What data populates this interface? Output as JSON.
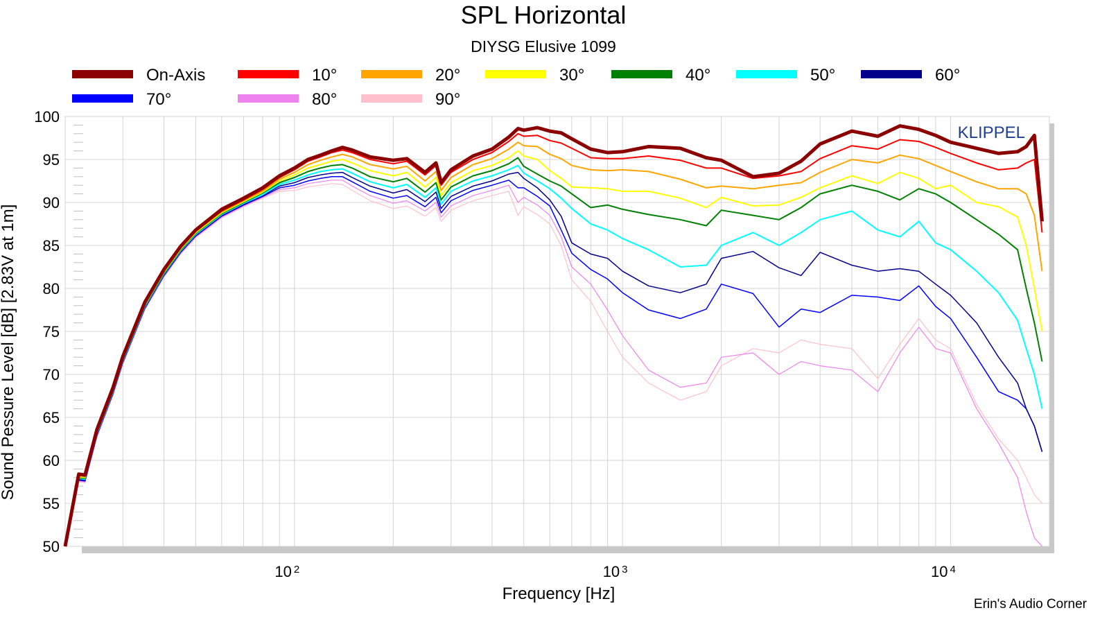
{
  "chart_data": {
    "type": "line",
    "title": "SPL Horizontal",
    "subtitle": "DIYSG Elusive 1099",
    "xlabel": "Frequency [Hz]",
    "ylabel": "Sound Pessure Level [dB]   [2.83V at 1m]",
    "x_scale": "log",
    "xlim": [
      20,
      20000
    ],
    "ylim": [
      50,
      100
    ],
    "grid": true,
    "legend_placement": "top",
    "watermark": "KLIPPEL",
    "credit": "Erin's Audio Corner",
    "x_ticks": [
      {
        "base": "10",
        "exp": "2",
        "value": 100
      },
      {
        "base": "10",
        "exp": "3",
        "value": 1000
      },
      {
        "base": "10",
        "exp": "4",
        "value": 10000
      }
    ],
    "y_ticks": [
      "100",
      "95",
      "90",
      "85",
      "80",
      "75",
      "70",
      "65",
      "60",
      "55",
      "50"
    ],
    "x": [
      20,
      22,
      23,
      25,
      28,
      30,
      35,
      40,
      45,
      50,
      60,
      70,
      80,
      90,
      100,
      110,
      120,
      130,
      140,
      150,
      170,
      200,
      220,
      250,
      270,
      280,
      300,
      350,
      400,
      450,
      480,
      500,
      550,
      600,
      650,
      700,
      800,
      900,
      1000,
      1200,
      1500,
      1800,
      2000,
      2500,
      3000,
      3500,
      4000,
      5000,
      6000,
      7000,
      8000,
      9000,
      10000,
      12000,
      14000,
      16000,
      17000,
      18000,
      19000
    ],
    "series": [
      {
        "name": "On-Axis",
        "color": "#8b0000",
        "width": 5,
        "values": [
          50.0,
          58.4,
          58.3,
          63.6,
          68.5,
          72.1,
          78.4,
          82.2,
          84.9,
          86.8,
          89.2,
          90.5,
          91.7,
          93.1,
          94.0,
          95.0,
          95.5,
          96.0,
          96.4,
          96.1,
          95.3,
          94.9,
          95.1,
          93.5,
          94.6,
          92.3,
          93.8,
          95.4,
          96.2,
          97.6,
          98.6,
          98.4,
          98.7,
          98.3,
          98.1,
          97.4,
          96.2,
          95.8,
          95.9,
          96.5,
          96.3,
          95.2,
          94.9,
          93.0,
          93.4,
          94.8,
          96.8,
          98.3,
          97.7,
          98.9,
          98.5,
          97.8,
          97.0,
          96.3,
          95.7,
          95.9,
          96.5,
          97.8,
          87.8
        ]
      },
      {
        "name": "10°",
        "color": "#ff0000",
        "width": 2,
        "values": [
          50.0,
          58.3,
          58.2,
          63.5,
          68.4,
          72.0,
          78.3,
          82.1,
          84.8,
          86.7,
          89.0,
          90.3,
          91.5,
          92.9,
          93.8,
          94.8,
          95.3,
          95.8,
          96.1,
          95.8,
          95.0,
          94.5,
          94.8,
          93.2,
          94.3,
          92.0,
          93.5,
          95.0,
          95.8,
          97.1,
          98.0,
          97.7,
          97.8,
          97.2,
          96.9,
          96.3,
          95.2,
          95.1,
          95.1,
          95.4,
          94.9,
          94.0,
          94.0,
          92.8,
          93.1,
          93.6,
          95.1,
          96.6,
          96.2,
          97.3,
          97.1,
          96.4,
          95.7,
          94.6,
          93.8,
          94.0,
          94.6,
          95.0,
          86.5
        ]
      },
      {
        "name": "20°",
        "color": "#ffa500",
        "width": 2,
        "values": [
          50.0,
          58.2,
          58.1,
          63.4,
          68.3,
          71.9,
          78.2,
          82.0,
          84.7,
          86.6,
          88.9,
          90.2,
          91.3,
          92.7,
          93.5,
          94.4,
          94.9,
          95.3,
          95.6,
          95.3,
          94.4,
          93.9,
          94.2,
          92.5,
          93.6,
          91.4,
          92.9,
          94.4,
          95.1,
          96.2,
          97.0,
          96.6,
          96.5,
          95.6,
          95.1,
          94.3,
          93.8,
          93.7,
          93.8,
          93.6,
          92.7,
          91.7,
          91.9,
          91.6,
          92.0,
          92.3,
          93.5,
          95.0,
          94.6,
          95.5,
          95.1,
          94.3,
          93.6,
          92.4,
          91.6,
          91.6,
          91.0,
          88.5,
          82.0
        ]
      },
      {
        "name": "30°",
        "color": "#ffff00",
        "width": 2,
        "values": [
          50.0,
          58.1,
          58.0,
          63.3,
          68.2,
          71.8,
          78.1,
          81.9,
          84.6,
          86.5,
          88.8,
          90.1,
          91.2,
          92.5,
          93.2,
          94.0,
          94.4,
          94.8,
          95.0,
          94.6,
          93.7,
          93.1,
          93.5,
          91.8,
          92.9,
          90.8,
          92.3,
          93.7,
          94.3,
          95.2,
          96.0,
          95.4,
          95.0,
          93.7,
          92.8,
          91.8,
          91.7,
          91.6,
          91.3,
          91.3,
          90.5,
          89.4,
          90.6,
          89.6,
          89.7,
          90.6,
          91.7,
          93.1,
          92.2,
          93.5,
          92.8,
          91.6,
          92.0,
          90.0,
          89.5,
          88.3,
          85.0,
          80.0,
          75.0
        ]
      },
      {
        "name": "40°",
        "color": "#008000",
        "width": 2,
        "values": [
          50.0,
          58.0,
          57.9,
          63.2,
          68.1,
          71.7,
          78.0,
          81.8,
          84.5,
          86.4,
          88.7,
          90.0,
          91.1,
          92.3,
          92.9,
          93.6,
          94.0,
          94.3,
          94.4,
          94.0,
          93.0,
          92.4,
          92.8,
          91.2,
          92.3,
          90.3,
          91.8,
          93.1,
          93.7,
          94.5,
          95.2,
          94.2,
          93.3,
          92.5,
          91.9,
          91.0,
          89.4,
          89.7,
          89.2,
          88.6,
          88.0,
          87.3,
          89.1,
          88.5,
          88.0,
          89.4,
          91.0,
          92.0,
          91.3,
          90.3,
          91.6,
          91.0,
          90.0,
          88.0,
          86.3,
          84.5,
          80.0,
          76.0,
          71.5
        ]
      },
      {
        "name": "50°",
        "color": "#00ffff",
        "width": 2,
        "values": [
          50.0,
          57.9,
          57.8,
          63.1,
          68.0,
          71.6,
          77.9,
          81.7,
          84.4,
          86.3,
          88.6,
          89.9,
          90.9,
          92.1,
          92.6,
          93.2,
          93.6,
          93.8,
          93.9,
          93.4,
          92.4,
          91.7,
          92.1,
          90.6,
          91.7,
          89.8,
          91.3,
          92.5,
          93.1,
          93.8,
          94.3,
          93.4,
          92.5,
          91.6,
          90.5,
          89.3,
          87.5,
          86.8,
          85.8,
          84.5,
          82.5,
          82.7,
          85.0,
          86.5,
          85.0,
          86.5,
          88.0,
          89.0,
          86.8,
          86.0,
          87.8,
          85.3,
          84.5,
          82.0,
          79.5,
          76.3,
          73.0,
          70.0,
          66.0
        ]
      },
      {
        "name": "60°",
        "color": "#00008b",
        "width": 1.5,
        "values": [
          50.0,
          57.8,
          57.7,
          63.0,
          67.9,
          71.5,
          77.8,
          81.6,
          84.3,
          86.2,
          88.5,
          89.8,
          90.8,
          91.9,
          92.3,
          92.9,
          93.2,
          93.4,
          93.5,
          92.9,
          91.9,
          91.1,
          91.5,
          90.1,
          91.2,
          89.3,
          90.7,
          91.9,
          92.5,
          93.3,
          93.5,
          92.8,
          91.7,
          90.3,
          88.4,
          85.3,
          84.0,
          83.5,
          82.0,
          80.3,
          79.5,
          80.5,
          83.5,
          84.3,
          82.4,
          81.5,
          84.2,
          82.7,
          82.0,
          82.3,
          82.0,
          80.5,
          79.2,
          76.0,
          72.0,
          69.0,
          66.0,
          64.0,
          61.0
        ]
      },
      {
        "name": "70°",
        "color": "#0000ff",
        "width": 1.5,
        "values": [
          50.0,
          57.7,
          57.6,
          62.9,
          67.8,
          71.4,
          77.7,
          81.5,
          84.2,
          86.1,
          88.4,
          89.7,
          90.7,
          91.7,
          92.0,
          92.5,
          92.8,
          93.0,
          93.0,
          92.4,
          91.3,
          90.5,
          90.8,
          89.5,
          90.6,
          88.8,
          90.2,
          91.4,
          92.0,
          92.6,
          91.7,
          91.7,
          90.7,
          89.6,
          86.8,
          84.1,
          82.2,
          81.1,
          79.5,
          77.5,
          76.5,
          77.6,
          80.5,
          79.4,
          75.5,
          77.6,
          77.2,
          79.2,
          79.0,
          78.6,
          80.3,
          77.9,
          76.5,
          72.0,
          68.0,
          67.0,
          66.0,
          64.0,
          61.0
        ]
      },
      {
        "name": "80°",
        "color": "#ee82ee",
        "width": 1.2,
        "values": [
          50.0,
          57.6,
          57.5,
          62.8,
          67.7,
          71.3,
          77.6,
          81.4,
          84.1,
          86.0,
          88.3,
          89.6,
          90.6,
          91.5,
          91.7,
          92.2,
          92.4,
          92.6,
          92.6,
          91.9,
          90.8,
          89.9,
          90.2,
          89.0,
          90.0,
          88.3,
          89.6,
          90.8,
          91.4,
          92.0,
          90.0,
          90.6,
          89.7,
          88.5,
          86.0,
          82.5,
          80.5,
          77.5,
          74.5,
          70.5,
          68.5,
          69.0,
          72.0,
          72.5,
          70.0,
          71.5,
          71.0,
          70.5,
          68.0,
          72.5,
          75.5,
          73.0,
          72.5,
          66.0,
          62.0,
          58.0,
          54.0,
          51.0,
          50.0
        ]
      },
      {
        "name": "90°",
        "color": "#ffc0cb",
        "width": 1.2,
        "values": [
          50.0,
          57.5,
          57.4,
          62.7,
          67.6,
          71.2,
          77.5,
          81.3,
          84.0,
          85.9,
          88.2,
          89.5,
          90.5,
          91.3,
          91.4,
          91.8,
          92.0,
          92.2,
          92.1,
          91.4,
          90.2,
          89.3,
          89.6,
          88.4,
          89.4,
          87.8,
          89.1,
          90.2,
          90.8,
          91.3,
          88.5,
          89.5,
          88.6,
          87.5,
          85.0,
          81.0,
          78.5,
          75.0,
          72.0,
          69.0,
          67.0,
          68.0,
          71.0,
          73.0,
          72.5,
          74.0,
          73.5,
          73.0,
          69.5,
          73.5,
          76.5,
          74.0,
          73.0,
          66.5,
          62.5,
          60.0,
          58.0,
          56.0,
          55.0
        ]
      }
    ]
  }
}
